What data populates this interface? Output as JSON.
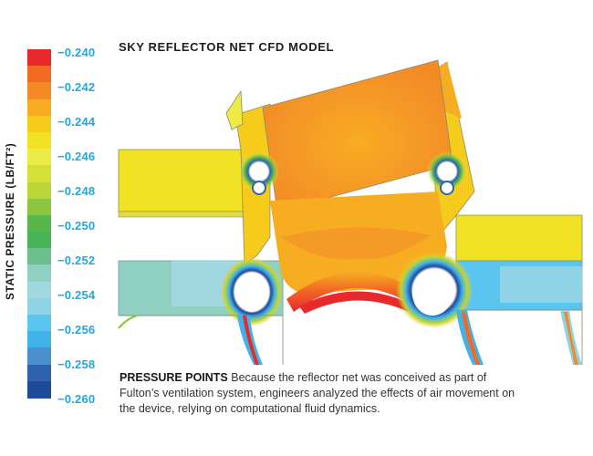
{
  "title": "SKY REFLECTOR NET CFD MODEL",
  "colorbar": {
    "axis_title": "STATIC PRESSURE (LB/FT²)",
    "tick_labels": [
      "−0.240",
      "−0.242",
      "−0.244",
      "−0.246",
      "−0.248",
      "−0.250",
      "−0.252",
      "−0.254",
      "−0.256",
      "−0.258",
      "−0.260"
    ],
    "colors": [
      "#e8282a",
      "#f26a24",
      "#f48a26",
      "#f7ad21",
      "#f6cc1c",
      "#f1e323",
      "#edeb45",
      "#d5e036",
      "#b9d537",
      "#8cc63f",
      "#57b74a",
      "#47b455",
      "#6cc08e",
      "#8fd0c2",
      "#a1d8df",
      "#8ed3e6",
      "#5ac6ef",
      "#41b3ea",
      "#4a8fcd",
      "#2f63b0",
      "#1f4a99"
    ]
  },
  "caption": {
    "lead": "PRESSURE POINTS",
    "body": " Because the reflector net was conceived as part of Fulton’s ventilation system, engineers analyzed the effects of air movement on the device, relying on computational fluid dynamics."
  }
}
